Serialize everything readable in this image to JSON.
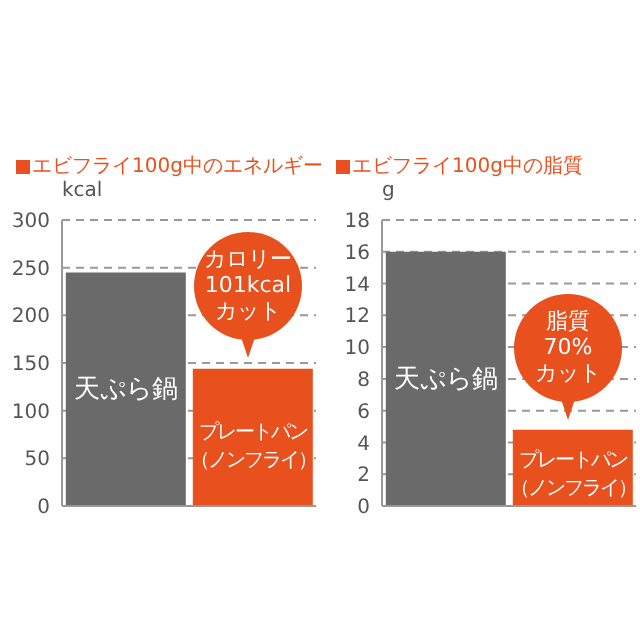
{
  "chart_data": [
    {
      "type": "bar",
      "title": "エビフライ100g中のエネルギー",
      "ylabel": "kcal",
      "categories": [
        "天ぷら鍋",
        "プレートパン（ノンフライ）"
      ],
      "values": [
        245,
        144
      ],
      "colors": [
        "#6a6a6a",
        "#e8501e"
      ],
      "ylim": [
        0,
        300
      ],
      "yticks": [
        0,
        50,
        100,
        150,
        200,
        250,
        300
      ],
      "grid": "y",
      "tick_labels": "y",
      "annotations": [
        "カロリー\n101kcal\nカット"
      ]
    },
    {
      "type": "bar",
      "title": "エビフライ100g中の脂質",
      "ylabel": "g",
      "categories": [
        "天ぷら鍋",
        "プレートパン（ノンフライ）"
      ],
      "values": [
        16,
        4.8
      ],
      "colors": [
        "#6a6a6a",
        "#e8501e"
      ],
      "ylim": [
        0,
        18
      ],
      "yticks": [
        0,
        2,
        4,
        6,
        8,
        10,
        12,
        14,
        16,
        18
      ],
      "grid": "y",
      "tick_labels": "y",
      "annotations": [
        "脂質\n70%\nカット"
      ]
    }
  ]
}
